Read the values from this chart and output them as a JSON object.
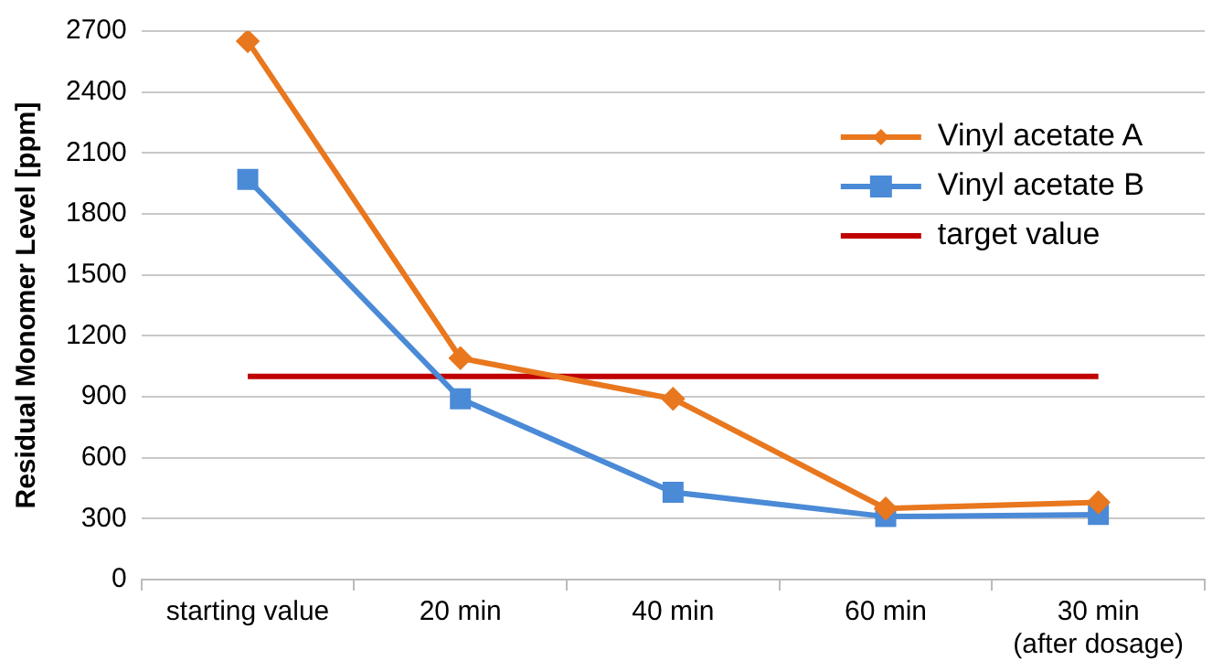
{
  "chart_data": {
    "type": "line",
    "ylabel": "Residual Monomer Level [ppm]",
    "categories": [
      "starting value",
      "20 min",
      "40 min",
      "60 min",
      "30 min\n(after dosage)"
    ],
    "series": [
      {
        "name": "Vinyl acetate A",
        "color": "#e8771e",
        "marker": "diamond",
        "values": [
          2650,
          1090,
          890,
          350,
          380
        ]
      },
      {
        "name": "Vinyl acetate B",
        "color": "#4a8ad6",
        "marker": "square",
        "values": [
          1970,
          890,
          430,
          310,
          320
        ]
      },
      {
        "name": "target value",
        "color": "#c00000",
        "marker": "none",
        "values": [
          1000,
          1000,
          1000,
          1000,
          1000
        ]
      }
    ],
    "ylim": [
      0,
      2700
    ],
    "yticks": [
      0,
      300,
      600,
      900,
      1200,
      1500,
      1800,
      2100,
      2400,
      2700
    ],
    "grid": "y",
    "legend": "top right",
    "line_style": "solid"
  }
}
